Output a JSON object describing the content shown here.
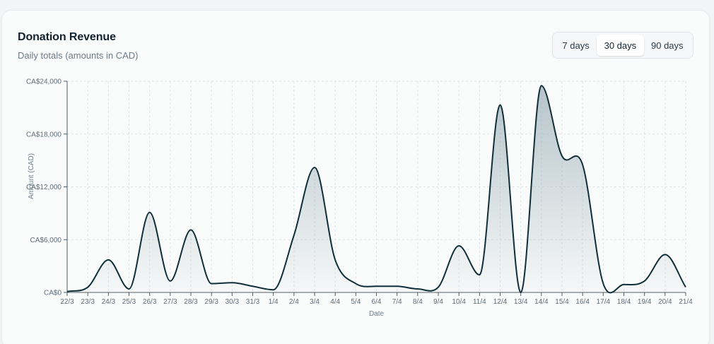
{
  "card": {
    "title": "Donation Revenue",
    "subtitle": "Daily totals (amounts in CAD)"
  },
  "range_toggle": {
    "options": [
      {
        "label": "7 days",
        "active": false
      },
      {
        "label": "30 days",
        "active": true
      },
      {
        "label": "90 days",
        "active": false
      }
    ]
  },
  "colors": {
    "line": "#0f2f3a",
    "area_top": "#9fb2b9",
    "grid": "#dde3e6",
    "axis": "#4f5c66"
  },
  "chart_data": {
    "type": "area",
    "title": "",
    "xlabel": "Date",
    "ylabel": "Amount (CAD)",
    "ylim": [
      0,
      24000
    ],
    "yticks": [
      "CA$0",
      "CA$6,000",
      "CA$12,000",
      "CA$18,000",
      "CA$24,000"
    ],
    "ytick_values": [
      0,
      6000,
      12000,
      18000,
      24000
    ],
    "grid": true,
    "x": [
      "22/3",
      "23/3",
      "24/3",
      "25/3",
      "26/3",
      "27/3",
      "28/3",
      "29/3",
      "30/3",
      "31/3",
      "1/4",
      "2/4",
      "3/4",
      "4/4",
      "5/4",
      "6/4",
      "7/4",
      "8/4",
      "9/4",
      "10/4",
      "11/4",
      "12/4",
      "13/4",
      "14/4",
      "15/4",
      "16/4",
      "17/4",
      "18/4",
      "19/4",
      "20/4",
      "21/4"
    ],
    "series": [
      {
        "values": [
          100,
          600,
          3700,
          400,
          9100,
          1300,
          7100,
          1000,
          1100,
          700,
          300,
          6500,
          14200,
          3700,
          1000,
          700,
          700,
          400,
          600,
          5300,
          2000,
          21300,
          0,
          23500,
          15500,
          14500,
          1000,
          900,
          1300,
          4300,
          600
        ]
      }
    ]
  }
}
